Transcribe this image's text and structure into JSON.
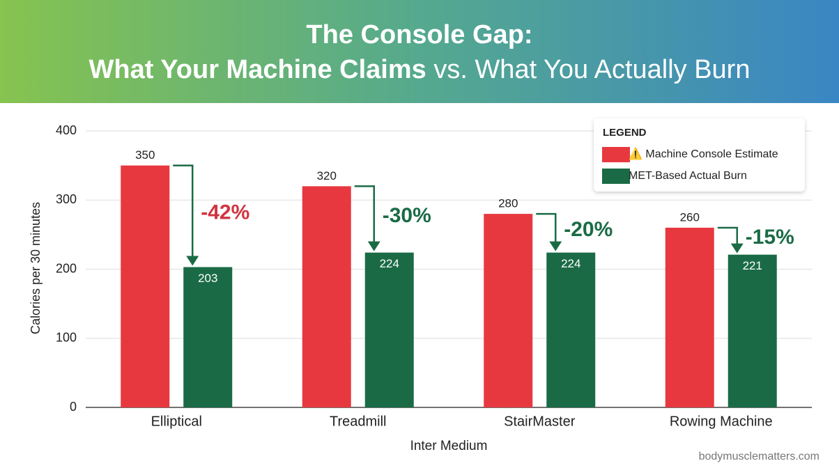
{
  "chart_data": {
    "type": "bar",
    "title": [
      "The Console Gap:",
      "What Your Machine Claims",
      "vs. What You Actually Burn"
    ],
    "categories": [
      "Elliptical",
      "Treadmill",
      "StairMaster",
      "Rowing Machine"
    ],
    "series": [
      {
        "name": "⚠️ Machine Console Estimate",
        "color": "#e8383f",
        "values": [
          350,
          320,
          280,
          260
        ]
      },
      {
        "name": "MET-Based Actual Burn",
        "color": "#1a6b45",
        "values": [
          203,
          224,
          224,
          221
        ]
      }
    ],
    "annotations": [
      "-42%",
      "-30%",
      "-20%",
      "-15%"
    ],
    "annotation_colors": [
      "#d0343f",
      "#1a6b45",
      "#1a6b45",
      "#1a6b45"
    ],
    "legend_title": "LEGEND",
    "legend_position": "upper right",
    "xlabel": "Inter Medium",
    "ylabel": "Calories per 30 minutes",
    "ylim": [
      0,
      400
    ],
    "yticks": [
      0,
      100,
      200,
      300,
      400
    ],
    "grid": true,
    "source": "bodymusclematters.com"
  }
}
